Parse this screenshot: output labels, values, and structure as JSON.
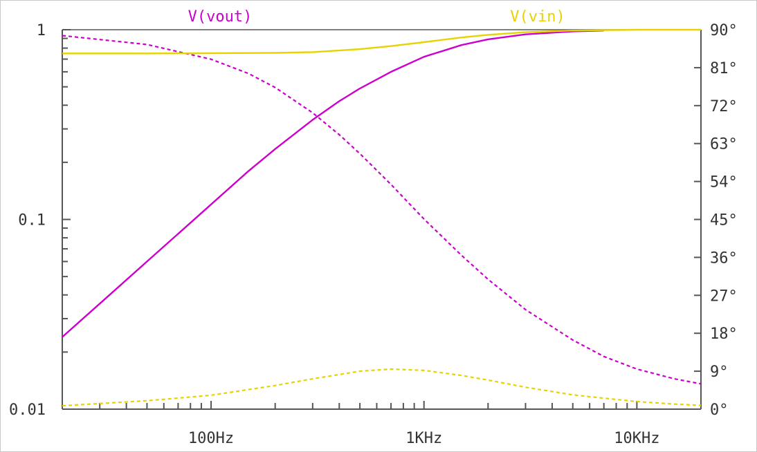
{
  "chart_data": {
    "type": "line",
    "x_scale": "log",
    "x_unit": "Hz",
    "xlim": [
      20,
      20000
    ],
    "x_ticks": [
      {
        "value": 100,
        "label": "100Hz"
      },
      {
        "value": 1000,
        "label": "1KHz"
      },
      {
        "value": 10000,
        "label": "10KHz"
      }
    ],
    "left_axis": {
      "scale": "log",
      "ylim": [
        0.01,
        1
      ],
      "ticks": [
        {
          "value": 1,
          "label": "1"
        },
        {
          "value": 0.1,
          "label": "0.1"
        },
        {
          "value": 0.01,
          "label": "0.01"
        }
      ]
    },
    "right_axis": {
      "scale": "linear",
      "unit": "°",
      "ylim": [
        0,
        90
      ],
      "ticks": [
        {
          "value": 0,
          "label": "0°"
        },
        {
          "value": 9,
          "label": "9°"
        },
        {
          "value": 18,
          "label": "18°"
        },
        {
          "value": 27,
          "label": "27°"
        },
        {
          "value": 36,
          "label": "36°"
        },
        {
          "value": 45,
          "label": "45°"
        },
        {
          "value": 54,
          "label": "54°"
        },
        {
          "value": 63,
          "label": "63°"
        },
        {
          "value": 72,
          "label": "72°"
        },
        {
          "value": 81,
          "label": "81°"
        },
        {
          "value": 90,
          "label": "90°"
        }
      ]
    },
    "grid": false,
    "legend_position": "top",
    "series": [
      {
        "name": "V(vout)",
        "color": "#cc00cc",
        "magnitude": {
          "x": [
            20,
            30,
            50,
            70,
            100,
            150,
            200,
            300,
            400,
            500,
            700,
            1000,
            1500,
            2000,
            3000,
            5000,
            7000
          ],
          "y": [
            0.024,
            0.036,
            0.06,
            0.084,
            0.12,
            0.18,
            0.235,
            0.335,
            0.42,
            0.49,
            0.6,
            0.72,
            0.83,
            0.89,
            0.945,
            0.98,
            0.99
          ]
        },
        "phase": {
          "x": [
            20,
            50,
            100,
            150,
            200,
            300,
            400,
            500,
            700,
            1000,
            1500,
            2000,
            3000,
            5000,
            7000,
            10000,
            15000,
            20000
          ],
          "y": [
            88.6,
            86.5,
            83,
            79.6,
            76.3,
            70.3,
            65.1,
            60.6,
            53.3,
            45.1,
            36.5,
            30.8,
            23.6,
            16.4,
            12.5,
            9.5,
            7.2,
            6
          ]
        }
      },
      {
        "name": "V(vin)",
        "color": "#e6d300",
        "magnitude": {
          "x": [
            20,
            50,
            100,
            200,
            300,
            500,
            700,
            1000,
            1500,
            2000,
            3000,
            5000,
            10000,
            20000
          ],
          "y": [
            0.75,
            0.75,
            0.752,
            0.755,
            0.762,
            0.79,
            0.82,
            0.86,
            0.91,
            0.94,
            0.97,
            0.99,
            1.0,
            1.0
          ]
        },
        "phase": {
          "x": [
            20,
            50,
            100,
            200,
            300,
            500,
            700,
            1000,
            1500,
            2000,
            3000,
            5000,
            7000,
            10000,
            15000,
            20000
          ],
          "y": [
            0.8,
            2.0,
            3.3,
            5.6,
            7.2,
            9.0,
            9.5,
            9.2,
            8.0,
            6.9,
            5.2,
            3.4,
            2.6,
            1.8,
            1.2,
            0.9
          ]
        }
      }
    ]
  }
}
